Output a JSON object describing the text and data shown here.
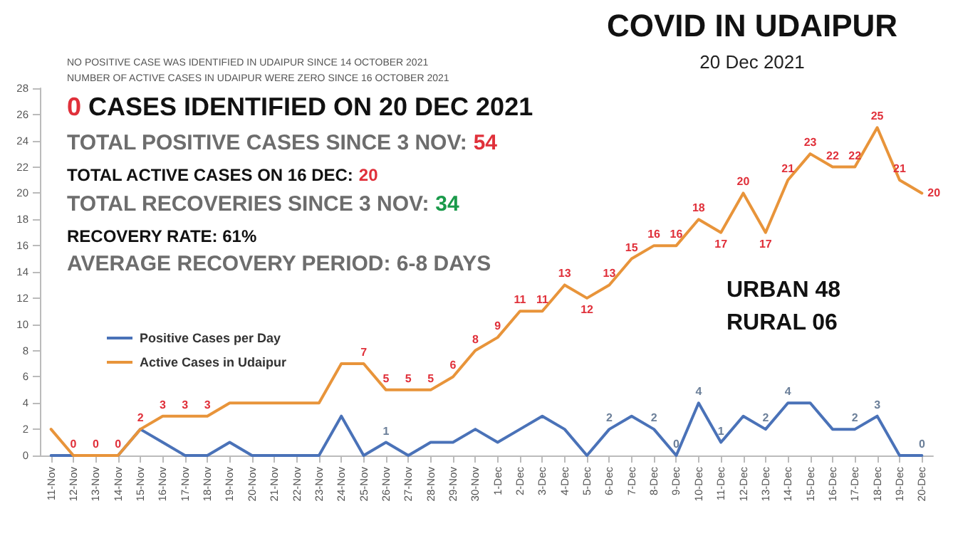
{
  "chart_data": {
    "type": "line",
    "title": "COVID IN UDAIPUR",
    "subtitle": "20 Dec 2021",
    "annotations": [
      "NO POSITIVE CASE WAS IDENTIFIED IN UDAIPUR SINCE 14 OCTOBER 2021",
      "NUMBER OF ACTIVE CASES IN UDAIPUR WERE ZERO SINCE 16 OCTOBER 2021",
      "0 CASES IDENTIFIED ON 20 DEC 2021",
      "TOTAL POSITIVE CASES SINCE 3 NOV: 54",
      "TOTAL ACTIVE CASES ON 16 DEC: 20",
      "TOTAL RECOVERIES SINCE 3 NOV: 34",
      "RECOVERY RATE: 61%",
      "AVERAGE RECOVERY PERIOD: 6-8 DAYS",
      "URBAN 48",
      "RURAL 06"
    ],
    "categories": [
      "11-Nov",
      "12-Nov",
      "13-Nov",
      "14-Nov",
      "15-Nov",
      "16-Nov",
      "17-Nov",
      "18-Nov",
      "19-Nov",
      "20-Nov",
      "21-Nov",
      "22-Nov",
      "23-Nov",
      "24-Nov",
      "25-Nov",
      "26-Nov",
      "27-Nov",
      "28-Nov",
      "29-Nov",
      "30-Nov",
      "1-Dec",
      "2-Dec",
      "3-Dec",
      "4-Dec",
      "5-Dec",
      "6-Dec",
      "7-Dec",
      "8-Dec",
      "9-Dec",
      "10-Dec",
      "11-Dec",
      "12-Dec",
      "13-Dec",
      "14-Dec",
      "15-Dec",
      "16-Dec",
      "17-Dec",
      "18-Dec",
      "19-Dec",
      "20-Dec"
    ],
    "series": [
      {
        "name": "Positive Cases per Day",
        "color": "#4a72b8",
        "values": [
          0,
          0,
          0,
          0,
          2,
          1,
          0,
          0,
          1,
          0,
          0,
          0,
          0,
          3,
          0,
          1,
          0,
          1,
          1,
          2,
          1,
          2,
          3,
          2,
          0,
          2,
          3,
          2,
          0,
          4,
          1,
          3,
          2,
          4,
          4,
          2,
          2,
          3,
          0,
          0
        ],
        "value_labels": [
          null,
          null,
          null,
          null,
          null,
          null,
          null,
          null,
          null,
          null,
          null,
          null,
          null,
          null,
          null,
          "1",
          null,
          null,
          null,
          null,
          null,
          null,
          null,
          null,
          null,
          "2",
          null,
          "2",
          "0",
          "4",
          "1",
          null,
          "2",
          "4",
          null,
          null,
          "2",
          "3",
          null,
          "0"
        ]
      },
      {
        "name": "Active Cases in Udaipur",
        "color": "#e8943a",
        "values": [
          2,
          0,
          0,
          0,
          2,
          3,
          3,
          3,
          4,
          4,
          4,
          4,
          4,
          7,
          7,
          5,
          5,
          5,
          6,
          8,
          9,
          11,
          11,
          13,
          12,
          13,
          15,
          16,
          16,
          18,
          17,
          20,
          17,
          21,
          23,
          22,
          22,
          25,
          21,
          20
        ],
        "value_labels": [
          null,
          "0",
          "0",
          "0",
          "2",
          "3",
          "3",
          "3",
          null,
          null,
          null,
          null,
          null,
          null,
          "7",
          "5",
          "5",
          "5",
          "6",
          "8",
          "9",
          "11",
          "11",
          "13",
          "12",
          "13",
          "15",
          "16",
          "16",
          "18",
          "17",
          "20",
          "17",
          "21",
          "23",
          "22",
          "22",
          "25",
          "21",
          "20"
        ]
      }
    ],
    "ylim": [
      0,
      28
    ],
    "yticks": [
      0,
      2,
      4,
      6,
      8,
      10,
      12,
      14,
      16,
      18,
      20,
      22,
      24,
      26,
      28
    ],
    "grid": false,
    "legend": "left",
    "marker": "none",
    "line_style": "solid"
  }
}
